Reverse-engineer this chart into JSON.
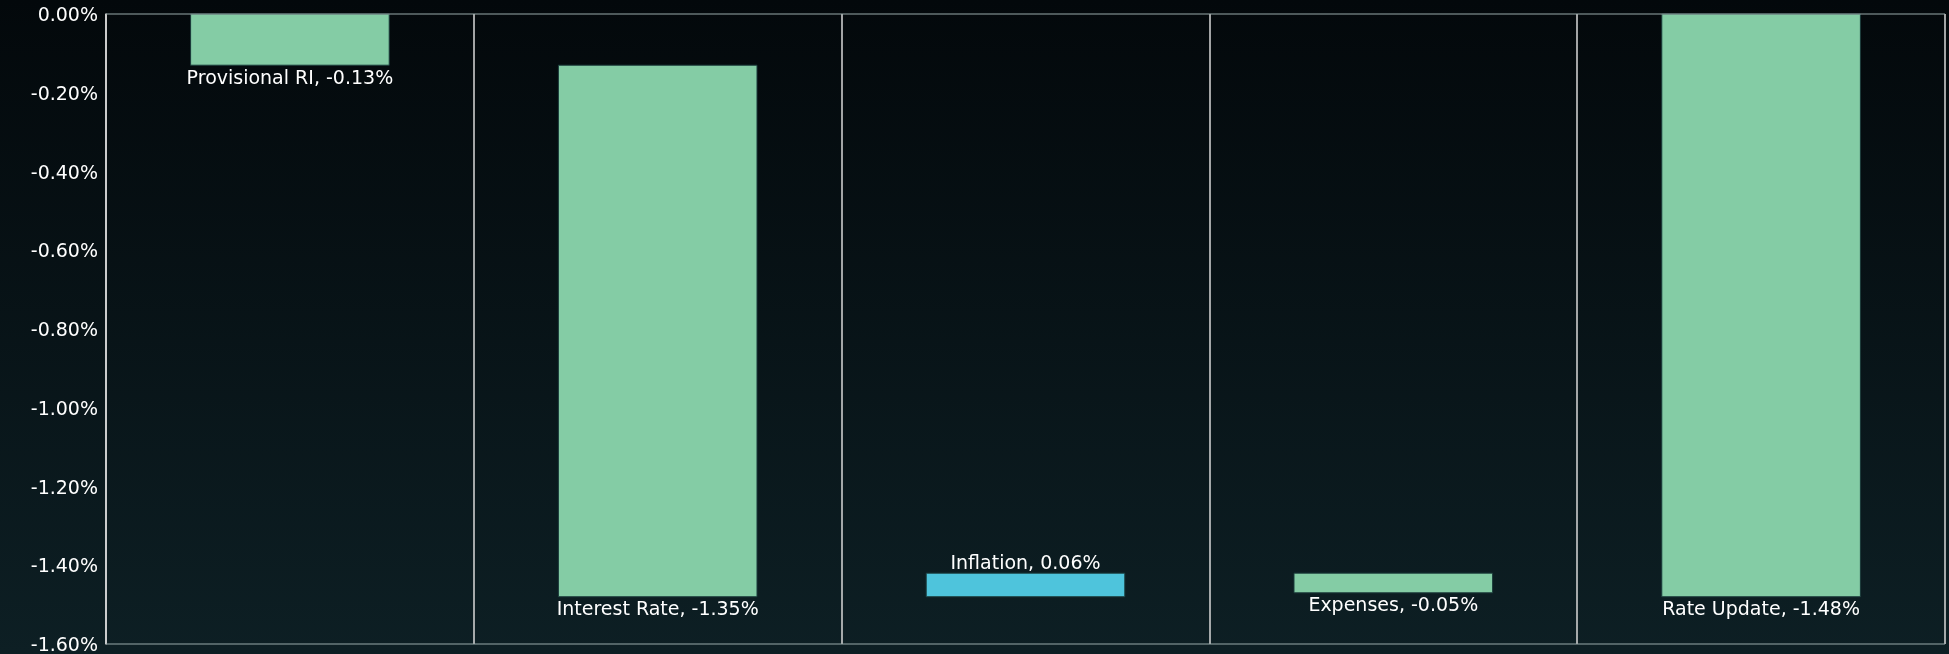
{
  "chart_data": {
    "type": "bar",
    "categories": [
      null,
      null,
      null,
      null,
      null
    ],
    "values": [
      -0.13,
      -1.35,
      0.06,
      -0.05,
      -1.48
    ],
    "base": [
      0,
      -0.13,
      -1.48,
      -1.42,
      0
    ],
    "colors": [
      "#84cca5",
      "#84cca5",
      "#4ec4dc",
      "#84cca5",
      "#84cca5"
    ],
    "value_labels": [
      "Provisional RI, -0.13%",
      "Interest Rate, -1.35%",
      "Inflation, 0.06%",
      "Expenses, -0.05%",
      "Rate Update, -1.48%"
    ],
    "ylim": [
      -1.6,
      0
    ],
    "yticks": [
      {
        "value": 0,
        "label": "0.00%"
      },
      {
        "value": -0.2,
        "label": "-0.20%"
      },
      {
        "value": -0.4,
        "label": "-0.40%"
      },
      {
        "value": -0.6,
        "label": "-0.60%"
      },
      {
        "value": -0.8,
        "label": "-0.80%"
      },
      {
        "value": -1,
        "label": "-1.00%"
      },
      {
        "value": -1.2,
        "label": "-1.20%"
      },
      {
        "value": -1.4,
        "label": "-1.40%"
      },
      {
        "value": -1.6,
        "label": "-1.60%"
      }
    ],
    "grid": "x",
    "tick_labels": "y"
  }
}
